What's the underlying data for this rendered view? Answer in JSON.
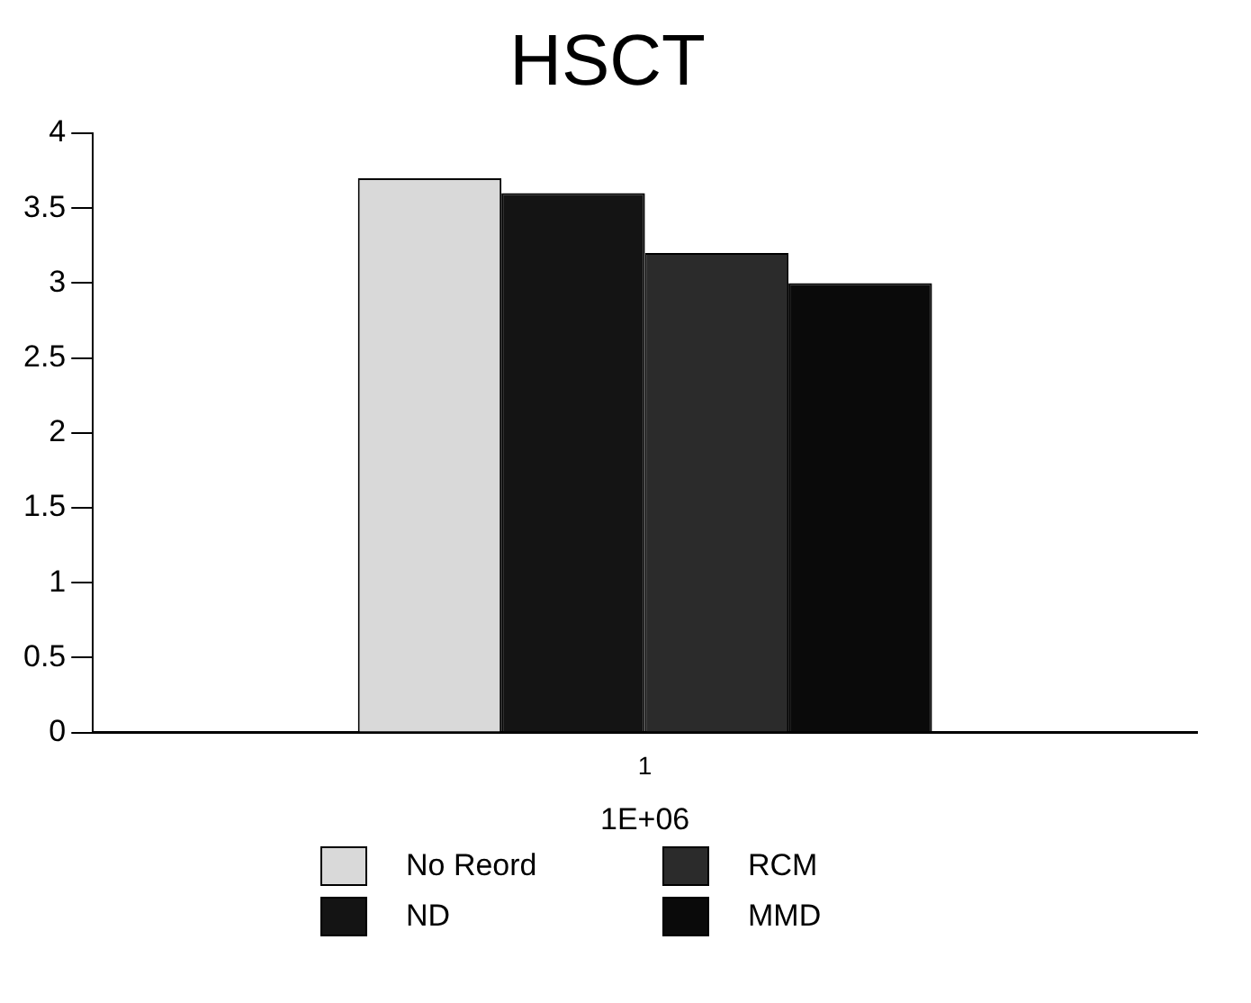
{
  "chart_data": {
    "type": "bar",
    "title": "HSCT",
    "xlabel": "1E+06",
    "categories": [
      "1"
    ],
    "series": [
      {
        "name": "No Reord",
        "color": "#d9d9d9",
        "values": [
          3.7
        ]
      },
      {
        "name": "ND",
        "color": "#141414",
        "values": [
          3.6
        ]
      },
      {
        "name": "RCM",
        "color": "#2b2b2b",
        "values": [
          3.2
        ]
      },
      {
        "name": "MMD",
        "color": "#0a0a0a",
        "values": [
          3.0
        ]
      }
    ],
    "ylim": [
      0,
      4
    ],
    "yticks": [
      0,
      0.5,
      1,
      1.5,
      2,
      2.5,
      3,
      3.5,
      4
    ],
    "grid": false,
    "legend": "bottom"
  }
}
